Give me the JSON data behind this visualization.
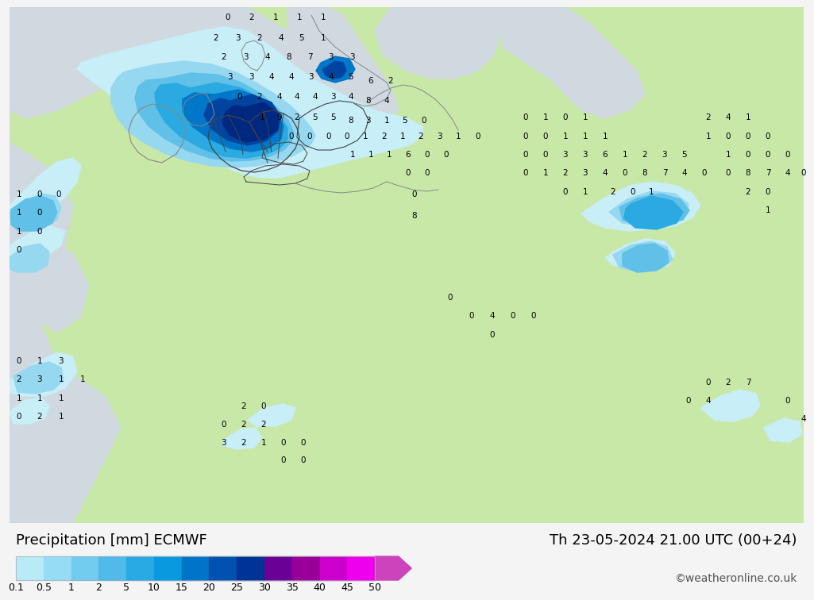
{
  "title_left": "Precipitation [mm] ECMWF",
  "title_right": "Th 23-05-2024 21.00 UTC (00+24)",
  "credit": "©weatheronline.co.uk",
  "colorbar_labels": [
    "0.1",
    "0.5",
    "1",
    "2",
    "5",
    "10",
    "15",
    "20",
    "25",
    "30",
    "35",
    "40",
    "45",
    "50"
  ],
  "colorbar_colors": [
    "#b8eaf8",
    "#96dcf5",
    "#72ccf0",
    "#50bbea",
    "#2aaae4",
    "#0899de",
    "#0074c8",
    "#0051b0",
    "#003396",
    "#6a0096",
    "#990099",
    "#cc00cc",
    "#ee00ee",
    "#cc44bb"
  ],
  "sea_color": "#d0d8e0",
  "land_color": "#c8e8a8",
  "border_color_dark": "#444444",
  "border_color_light": "#888888",
  "precip_c1": "#c8eef8",
  "precip_c2": "#96d8f0",
  "precip_c3": "#60c0e8",
  "precip_c4": "#2aaae0",
  "precip_c5": "#0077c8",
  "precip_c6": "#0044a0",
  "precip_c7": "#002880",
  "bar_bg": "#f4f4f4",
  "text_color": "#000000",
  "title_fontsize": 13,
  "credit_fontsize": 10,
  "label_fontsize": 9
}
